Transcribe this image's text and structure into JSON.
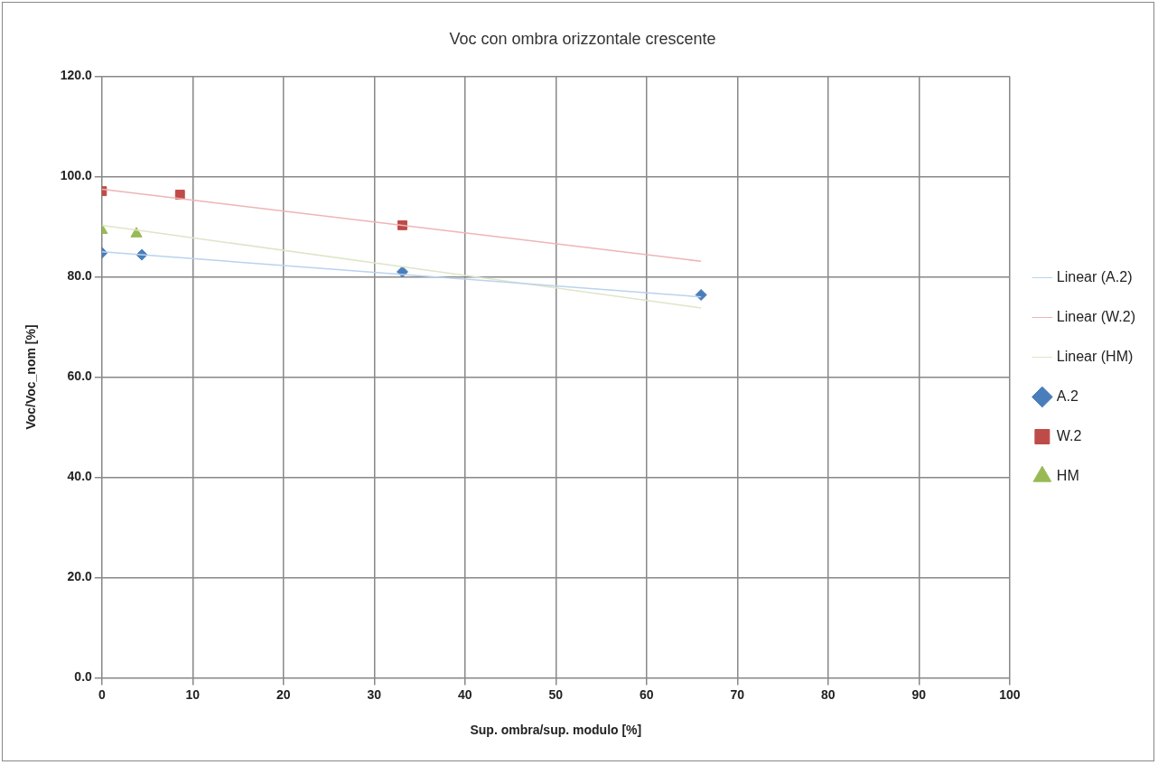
{
  "chart_data": {
    "type": "scatter",
    "title": "Voc con ombra orizzontale crescente",
    "xlabel": "Sup. ombra/sup. modulo [%]",
    "ylabel": "Voc/Voc_nom [%]",
    "xlim": [
      0,
      100
    ],
    "xticks": [
      0,
      10,
      20,
      30,
      40,
      50,
      60,
      70,
      80,
      90,
      100
    ],
    "ylim": [
      0,
      120
    ],
    "yticks": [
      {
        "value": 0,
        "label": "0.0"
      },
      {
        "value": 20,
        "label": "20.0"
      },
      {
        "value": 40,
        "label": "40.0"
      },
      {
        "value": 60,
        "label": "60.0"
      },
      {
        "value": 80,
        "label": "80.0"
      },
      {
        "value": 100,
        "label": "100.0"
      },
      {
        "value": 120,
        "label": "120.0"
      }
    ],
    "grid": true,
    "legend": "right",
    "series": [
      {
        "name": "A.2",
        "color": "#4a7ebb",
        "marker": "diamond",
        "x": [
          0,
          4.4,
          33.1,
          66
        ],
        "values": [
          84.8,
          84.4,
          81.0,
          76.4
        ]
      },
      {
        "name": "W.2",
        "color": "#be4b48",
        "marker": "square",
        "x": [
          0,
          8.6,
          33.1
        ],
        "values": [
          97.1,
          96.4,
          90.3
        ]
      },
      {
        "name": "HM",
        "color": "#98b954",
        "marker": "triangle",
        "x": [
          0,
          3.8
        ],
        "values": [
          89.3,
          88.6
        ]
      },
      {
        "name": "Linear (A.2)",
        "type": "line",
        "color": "#b9d3ee",
        "marker": "none",
        "x": [
          0,
          66
        ],
        "values": [
          85.0,
          76.0
        ]
      },
      {
        "name": "Linear (W.2)",
        "type": "line",
        "color": "#f0b4b4",
        "marker": "none",
        "x": [
          0,
          66
        ],
        "values": [
          97.5,
          83.1
        ]
      },
      {
        "name": "Linear (HM)",
        "type": "line",
        "color": "#dde6c8",
        "marker": "none",
        "x": [
          0,
          66
        ],
        "values": [
          90.3,
          73.8
        ]
      }
    ]
  }
}
